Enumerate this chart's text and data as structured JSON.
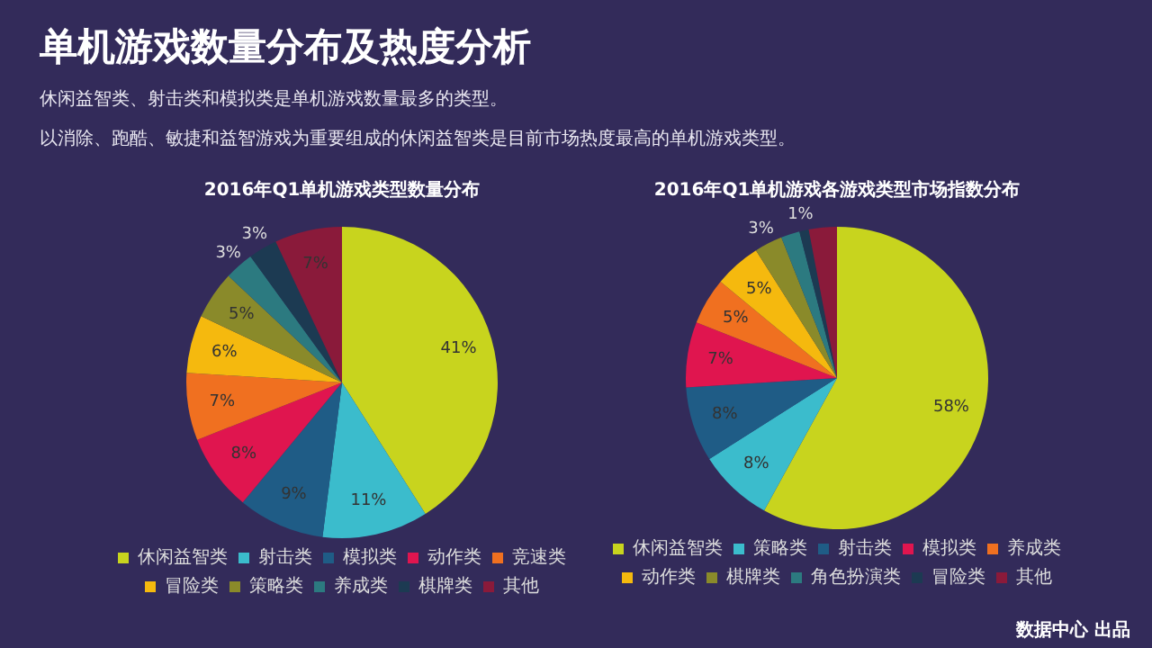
{
  "chart_data": [
    {
      "type": "pie",
      "title": "2016年Q1单机游戏类型数量分布",
      "annotations": [
        "单机游戏数量分布及热度分析",
        "休闲益智类、射击类和模拟类是单机游戏数量最多的类型。",
        "以消除、跑酷、敏捷和益智游戏为重要组成的休闲益智类是目前市场热度最高的单机游戏类型。"
      ],
      "categories": [
        "休闲益智类",
        "射击类",
        "模拟类",
        "动作类",
        "竞速类",
        "冒险类",
        "策略类",
        "养成类",
        "棋牌类",
        "其他"
      ],
      "values": [
        41,
        11,
        9,
        8,
        7,
        6,
        5,
        3,
        3,
        7
      ],
      "value_labels": [
        "41%",
        "11%",
        "9%",
        "8%",
        "7%",
        "6%",
        "5%",
        "3%",
        "3%",
        "7%"
      ],
      "colors": [
        "#c8d41e",
        "#3bbccc",
        "#1f5c86",
        "#e0154f",
        "#f07020",
        "#f5b90e",
        "#8a8a2a",
        "#2c7a80",
        "#1c3a52",
        "#8a1a3a"
      ],
      "legend": "bottom"
    },
    {
      "type": "pie",
      "title": "2016年Q1单机游戏各游戏类型市场指数分布",
      "annotations": [
        "数据中心 出品"
      ],
      "categories": [
        "休闲益智类",
        "策略类",
        "射击类",
        "模拟类",
        "养成类",
        "动作类",
        "棋牌类",
        "角色扮演类",
        "冒险类",
        "其他"
      ],
      "values": [
        58,
        8,
        8,
        7,
        5,
        5,
        3,
        2,
        1,
        3
      ],
      "value_labels": [
        "58%",
        "8%",
        "8%",
        "7%",
        "5%",
        "5%",
        "3%",
        null,
        "1%",
        null
      ],
      "colors": [
        "#c8d41e",
        "#3bbccc",
        "#1f5c86",
        "#e0154f",
        "#f07020",
        "#f5b90e",
        "#8a8a2a",
        "#2c7a80",
        "#1c3a52",
        "#8a1a3a"
      ],
      "legend": "bottom"
    }
  ]
}
